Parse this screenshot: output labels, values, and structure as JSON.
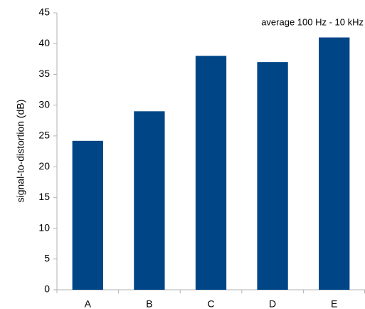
{
  "chart_data": {
    "type": "bar",
    "y_label": "signal-to-distortion (dB)",
    "annotation": "average 100 Hz - 10 kHz",
    "categories": [
      "A",
      "B",
      "C",
      "D",
      "E"
    ],
    "values": [
      24.2,
      29,
      38,
      37,
      41
    ],
    "color": "#004586",
    "ylim": [
      0,
      45
    ],
    "yticks": [
      0,
      5,
      10,
      15,
      20,
      25,
      30,
      35,
      40,
      45
    ],
    "grid": false
  }
}
